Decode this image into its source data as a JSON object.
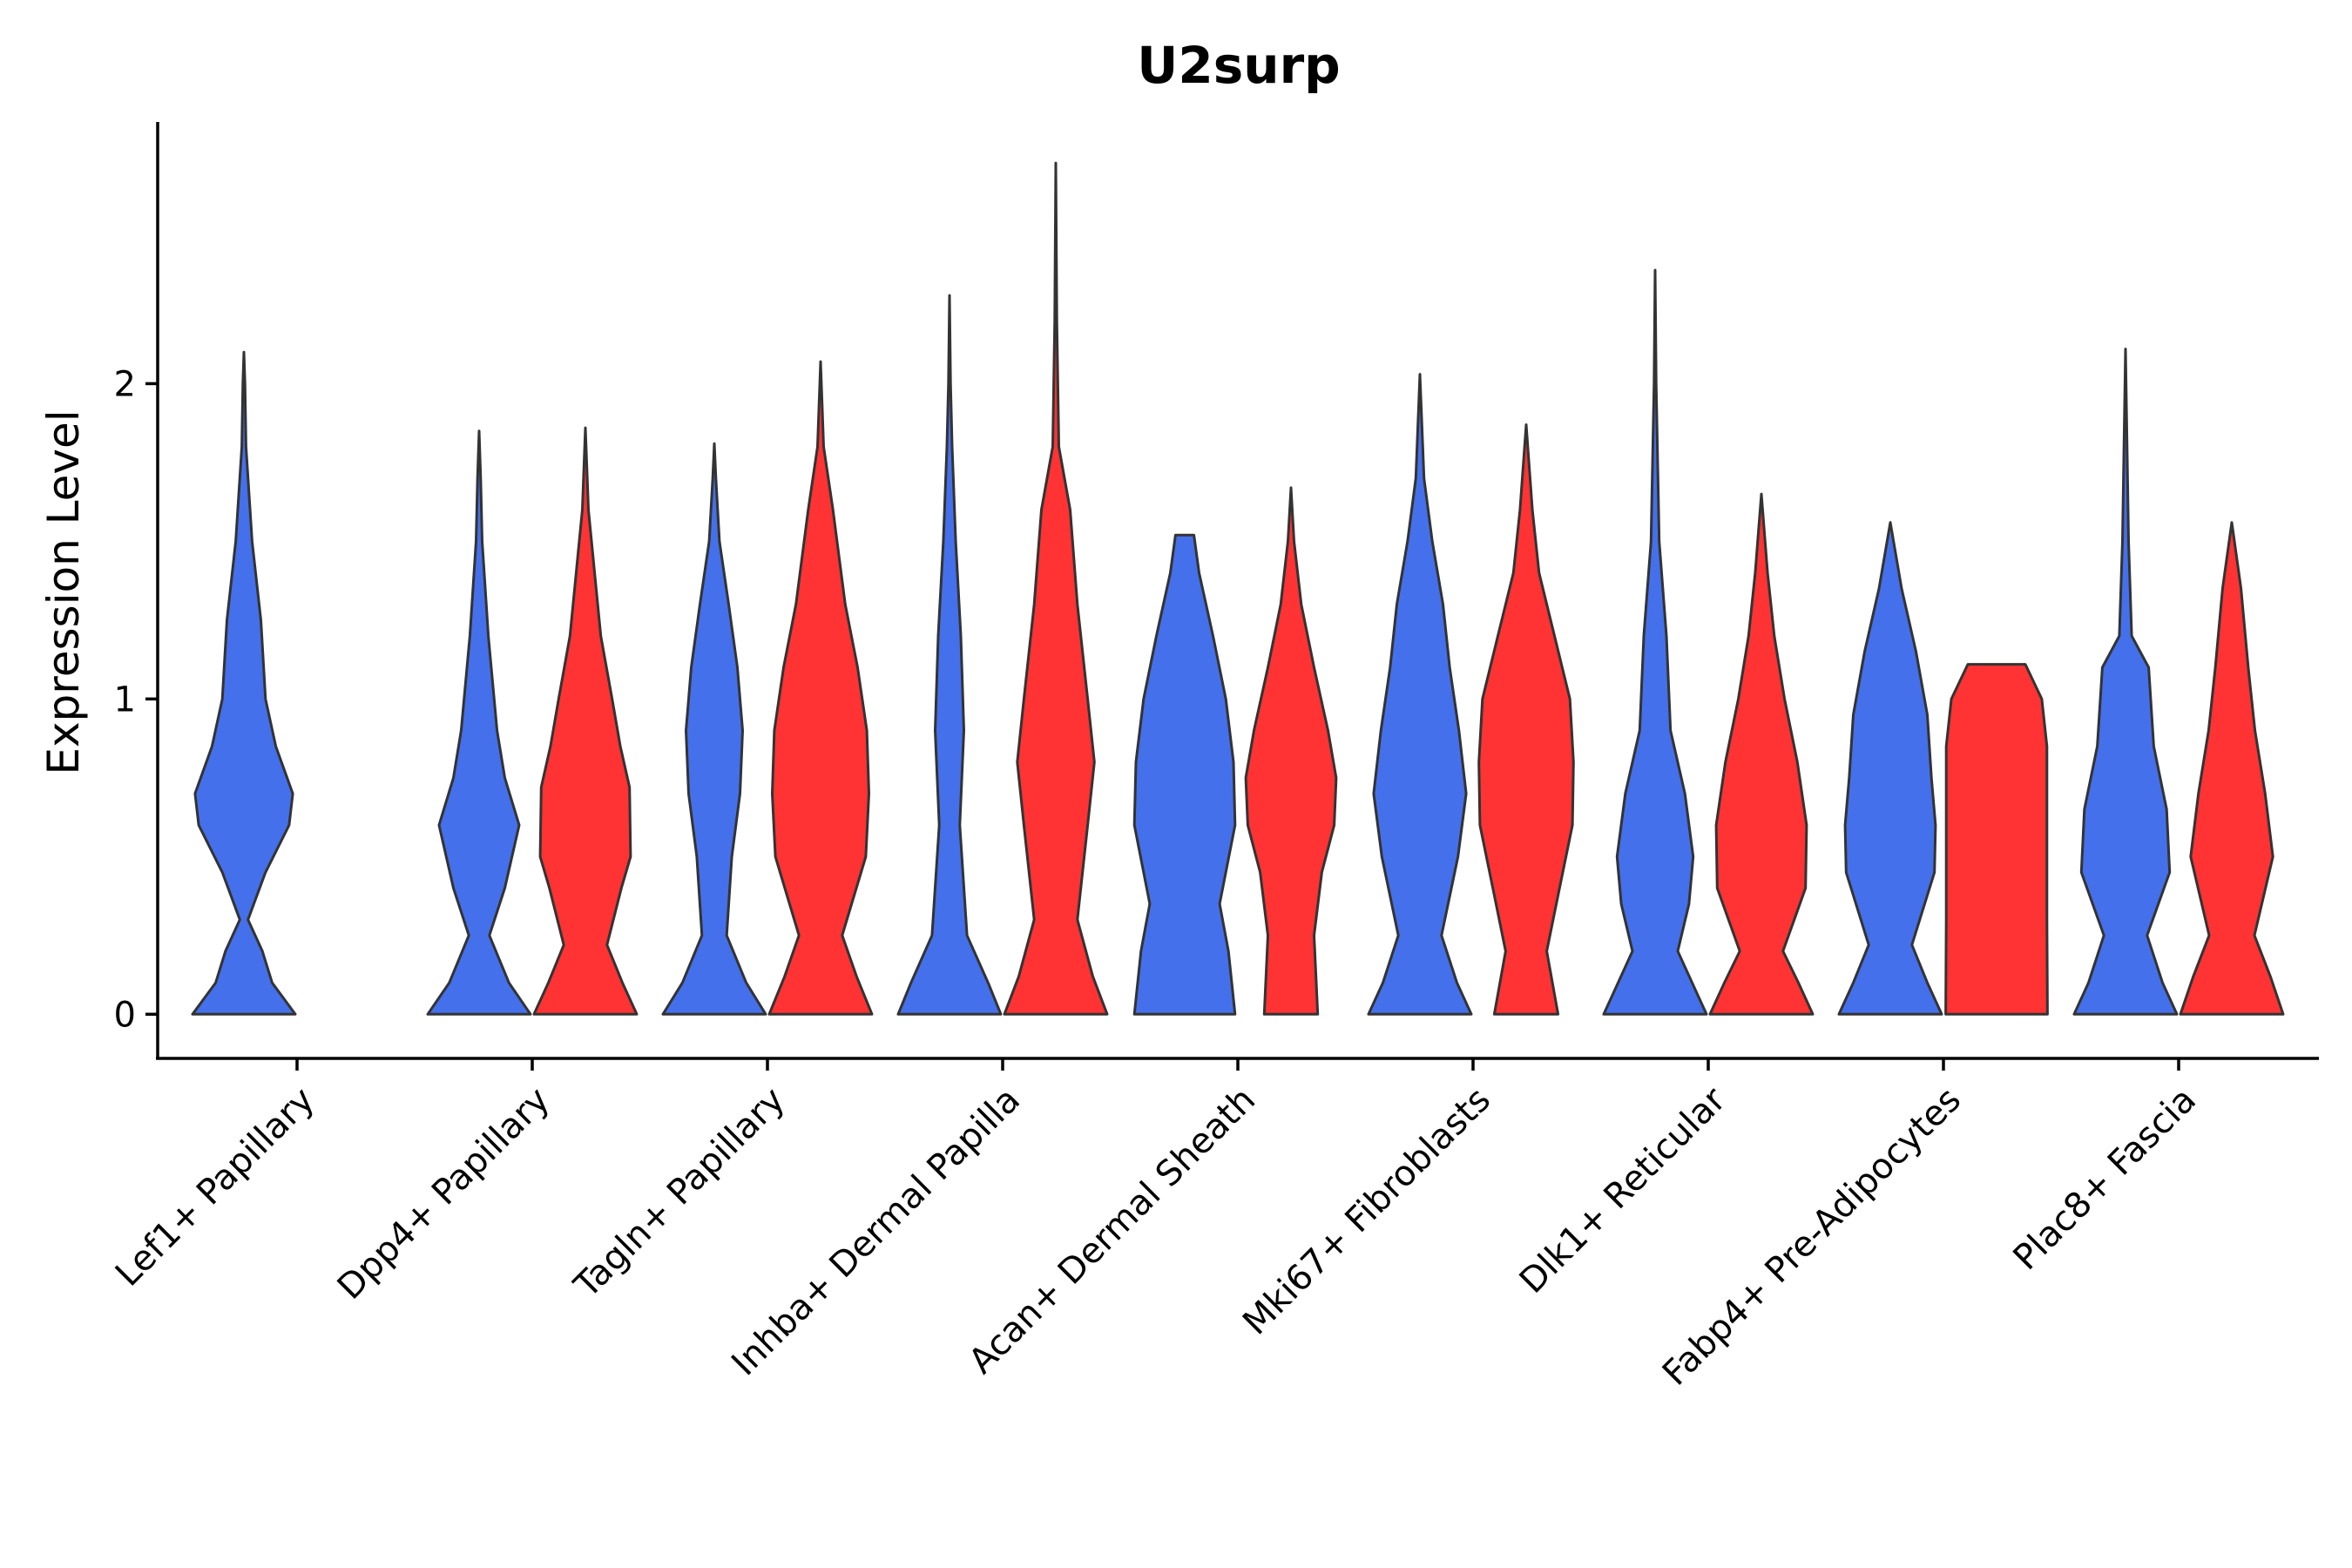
{
  "chart_data": {
    "type": "violin",
    "title": "U2surp",
    "xlabel": "",
    "ylabel": "Expression Level",
    "ylim": [
      -0.14,
      2.83
    ],
    "yticks": [
      0,
      1,
      2
    ],
    "ytick_labels": [
      "0",
      "1",
      "2"
    ],
    "grid": false,
    "legend": "none",
    "series_colors": [
      "#4470eb",
      "#ff3333"
    ],
    "categories": [
      "Lef1+ Papillary",
      "Dpp4+ Papillary",
      "Tagln+ Papillary",
      "Inhba+ Dermal Papilla",
      "Acan+ Dermal Sheath",
      "Mki67+ Fibroblasts",
      "Dlk1+ Reticular",
      "Fabp4+ Pre-Adipocytes",
      "Plac8+ Fascia"
    ],
    "violins": [
      {
        "category": 0,
        "group": 0,
        "max": 2.1,
        "profile": [
          [
            0,
            1.0
          ],
          [
            0.1,
            0.55
          ],
          [
            0.2,
            0.36
          ],
          [
            0.3,
            0.08
          ],
          [
            0.45,
            0.42
          ],
          [
            0.6,
            0.88
          ],
          [
            0.7,
            0.95
          ],
          [
            0.85,
            0.62
          ],
          [
            1.0,
            0.42
          ],
          [
            1.25,
            0.33
          ],
          [
            1.5,
            0.16
          ],
          [
            1.8,
            0.04
          ],
          [
            2.0,
            0.02
          ],
          [
            2.1,
            0
          ]
        ]
      },
      {
        "category": 1,
        "group": 0,
        "max": 1.85,
        "profile": [
          [
            0,
            1.0
          ],
          [
            0.1,
            0.58
          ],
          [
            0.25,
            0.2
          ],
          [
            0.4,
            0.5
          ],
          [
            0.6,
            0.78
          ],
          [
            0.75,
            0.5
          ],
          [
            0.9,
            0.35
          ],
          [
            1.2,
            0.18
          ],
          [
            1.5,
            0.06
          ],
          [
            1.7,
            0.03
          ],
          [
            1.85,
            0
          ]
        ]
      },
      {
        "category": 1,
        "group": 1,
        "max": 1.86,
        "profile": [
          [
            0,
            1.0
          ],
          [
            0.1,
            0.72
          ],
          [
            0.22,
            0.42
          ],
          [
            0.4,
            0.7
          ],
          [
            0.5,
            0.88
          ],
          [
            0.72,
            0.86
          ],
          [
            0.85,
            0.68
          ],
          [
            1.0,
            0.52
          ],
          [
            1.2,
            0.3
          ],
          [
            1.4,
            0.18
          ],
          [
            1.6,
            0.06
          ],
          [
            1.86,
            0
          ]
        ]
      },
      {
        "category": 2,
        "group": 0,
        "max": 1.81,
        "profile": [
          [
            0,
            1.0
          ],
          [
            0.1,
            0.62
          ],
          [
            0.25,
            0.24
          ],
          [
            0.5,
            0.34
          ],
          [
            0.7,
            0.5
          ],
          [
            0.9,
            0.55
          ],
          [
            1.1,
            0.45
          ],
          [
            1.3,
            0.28
          ],
          [
            1.5,
            0.1
          ],
          [
            1.7,
            0.03
          ],
          [
            1.81,
            0
          ]
        ]
      },
      {
        "category": 2,
        "group": 1,
        "max": 2.07,
        "profile": [
          [
            0,
            1.0
          ],
          [
            0.12,
            0.7
          ],
          [
            0.25,
            0.42
          ],
          [
            0.5,
            0.88
          ],
          [
            0.7,
            0.94
          ],
          [
            0.9,
            0.9
          ],
          [
            1.1,
            0.72
          ],
          [
            1.3,
            0.48
          ],
          [
            1.6,
            0.24
          ],
          [
            1.8,
            0.06
          ],
          [
            2.07,
            0
          ]
        ]
      },
      {
        "category": 3,
        "group": 0,
        "max": 2.28,
        "profile": [
          [
            0,
            1.0
          ],
          [
            0.1,
            0.75
          ],
          [
            0.25,
            0.34
          ],
          [
            0.6,
            0.2
          ],
          [
            0.9,
            0.28
          ],
          [
            1.2,
            0.22
          ],
          [
            1.5,
            0.12
          ],
          [
            1.8,
            0.05
          ],
          [
            2.0,
            0.02
          ],
          [
            2.28,
            0
          ]
        ]
      },
      {
        "category": 3,
        "group": 1,
        "max": 2.7,
        "profile": [
          [
            0,
            1.0
          ],
          [
            0.12,
            0.72
          ],
          [
            0.3,
            0.42
          ],
          [
            0.6,
            0.62
          ],
          [
            0.8,
            0.75
          ],
          [
            1.0,
            0.62
          ],
          [
            1.3,
            0.42
          ],
          [
            1.6,
            0.28
          ],
          [
            1.8,
            0.06
          ],
          [
            2.2,
            0.02
          ],
          [
            2.7,
            0
          ]
        ]
      },
      {
        "category": 4,
        "group": 0,
        "max": 1.52,
        "profile": [
          [
            0,
            0.98
          ],
          [
            0.2,
            0.85
          ],
          [
            0.35,
            0.68
          ],
          [
            0.6,
            0.98
          ],
          [
            0.8,
            0.95
          ],
          [
            1.0,
            0.8
          ],
          [
            1.2,
            0.55
          ],
          [
            1.4,
            0.28
          ],
          [
            1.52,
            0.18
          ],
          [
            1.52,
            0
          ]
        ]
      },
      {
        "category": 4,
        "group": 1,
        "max": 1.67,
        "profile": [
          [
            0,
            0.52
          ],
          [
            0.25,
            0.45
          ],
          [
            0.45,
            0.6
          ],
          [
            0.6,
            0.84
          ],
          [
            0.75,
            0.88
          ],
          [
            0.9,
            0.72
          ],
          [
            1.1,
            0.45
          ],
          [
            1.3,
            0.2
          ],
          [
            1.5,
            0.06
          ],
          [
            1.67,
            0
          ]
        ]
      },
      {
        "category": 5,
        "group": 0,
        "max": 2.03,
        "profile": [
          [
            0,
            1.0
          ],
          [
            0.1,
            0.72
          ],
          [
            0.25,
            0.42
          ],
          [
            0.5,
            0.74
          ],
          [
            0.7,
            0.9
          ],
          [
            0.9,
            0.76
          ],
          [
            1.1,
            0.58
          ],
          [
            1.3,
            0.45
          ],
          [
            1.5,
            0.24
          ],
          [
            1.7,
            0.08
          ],
          [
            2.03,
            0
          ]
        ]
      },
      {
        "category": 5,
        "group": 1,
        "max": 1.87,
        "profile": [
          [
            0,
            0.62
          ],
          [
            0.2,
            0.4
          ],
          [
            0.4,
            0.65
          ],
          [
            0.6,
            0.9
          ],
          [
            0.8,
            0.92
          ],
          [
            1.0,
            0.85
          ],
          [
            1.2,
            0.55
          ],
          [
            1.4,
            0.25
          ],
          [
            1.6,
            0.12
          ],
          [
            1.87,
            0
          ]
        ]
      },
      {
        "category": 6,
        "group": 0,
        "max": 2.36,
        "profile": [
          [
            0,
            1.0
          ],
          [
            0.1,
            0.72
          ],
          [
            0.2,
            0.44
          ],
          [
            0.35,
            0.66
          ],
          [
            0.5,
            0.74
          ],
          [
            0.7,
            0.58
          ],
          [
            0.9,
            0.3
          ],
          [
            1.2,
            0.22
          ],
          [
            1.5,
            0.08
          ],
          [
            2.0,
            0.02
          ],
          [
            2.36,
            0
          ]
        ]
      },
      {
        "category": 6,
        "group": 1,
        "max": 1.65,
        "profile": [
          [
            0,
            1.0
          ],
          [
            0.1,
            0.72
          ],
          [
            0.2,
            0.42
          ],
          [
            0.4,
            0.86
          ],
          [
            0.6,
            0.88
          ],
          [
            0.8,
            0.7
          ],
          [
            1.0,
            0.45
          ],
          [
            1.2,
            0.25
          ],
          [
            1.4,
            0.12
          ],
          [
            1.65,
            0
          ]
        ]
      },
      {
        "category": 7,
        "group": 0,
        "max": 1.56,
        "profile": [
          [
            0,
            1.0
          ],
          [
            0.1,
            0.72
          ],
          [
            0.22,
            0.42
          ],
          [
            0.45,
            0.86
          ],
          [
            0.6,
            0.88
          ],
          [
            0.75,
            0.8
          ],
          [
            0.95,
            0.72
          ],
          [
            1.15,
            0.5
          ],
          [
            1.35,
            0.22
          ],
          [
            1.56,
            0
          ]
        ]
      },
      {
        "category": 7,
        "group": 1,
        "max": 1.11,
        "profile": [
          [
            0,
            0.99
          ],
          [
            0.3,
            0.98
          ],
          [
            0.6,
            0.98
          ],
          [
            0.85,
            0.98
          ],
          [
            1.0,
            0.88
          ],
          [
            1.11,
            0.56
          ],
          [
            1.11,
            0
          ]
        ]
      },
      {
        "category": 8,
        "group": 0,
        "max": 2.11,
        "profile": [
          [
            0,
            1.0
          ],
          [
            0.1,
            0.72
          ],
          [
            0.25,
            0.42
          ],
          [
            0.45,
            0.86
          ],
          [
            0.65,
            0.8
          ],
          [
            0.85,
            0.55
          ],
          [
            1.1,
            0.45
          ],
          [
            1.2,
            0.12
          ],
          [
            1.5,
            0.06
          ],
          [
            2.11,
            0
          ]
        ]
      },
      {
        "category": 8,
        "group": 1,
        "max": 1.56,
        "profile": [
          [
            0,
            1.0
          ],
          [
            0.12,
            0.75
          ],
          [
            0.25,
            0.44
          ],
          [
            0.5,
            0.8
          ],
          [
            0.7,
            0.65
          ],
          [
            0.9,
            0.45
          ],
          [
            1.1,
            0.32
          ],
          [
            1.35,
            0.18
          ],
          [
            1.56,
            0
          ]
        ]
      }
    ]
  }
}
